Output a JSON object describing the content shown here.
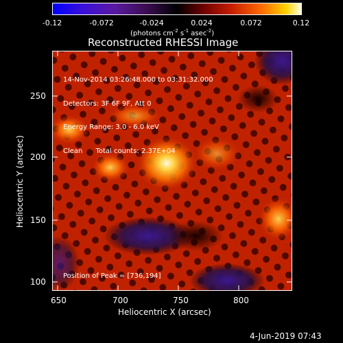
{
  "colorbar": {
    "ticks": [
      "-0.12",
      "-0.072",
      "-0.024",
      "0.024",
      "0.072",
      "0.12"
    ],
    "units_text": "(photons cm",
    "units_exp1": "-2",
    "units_mid1": " s",
    "units_exp2": "-1",
    "units_mid2": " asec",
    "units_exp3": "-2",
    "units_close": ")"
  },
  "title": "Reconstructed RHESSI Image",
  "info": {
    "line1": "14-Nov-2014 03:26:48.000 to 03:31:32.000",
    "line2": "Detectors: 3F 6F 9F, Att 0",
    "line3": "Energy Range: 3.0 - 6.0 keV",
    "line4_a": "Clean",
    "line4_b": "Total counts: 2.37E+04"
  },
  "peak_label": "Position of Peak = [736,194]",
  "xaxis": {
    "label": "Heliocentric X (arcsec)",
    "ticks": [
      "650",
      "700",
      "750",
      "800"
    ]
  },
  "yaxis": {
    "label": "Heliocentric Y (arcsec)",
    "ticks": [
      "250",
      "200",
      "150",
      "100"
    ]
  },
  "timestamp": "4-Jun-2019 07:43",
  "colors": {
    "axis": "#ffffff",
    "background": "#000000",
    "peak": "#fff6c0"
  }
}
